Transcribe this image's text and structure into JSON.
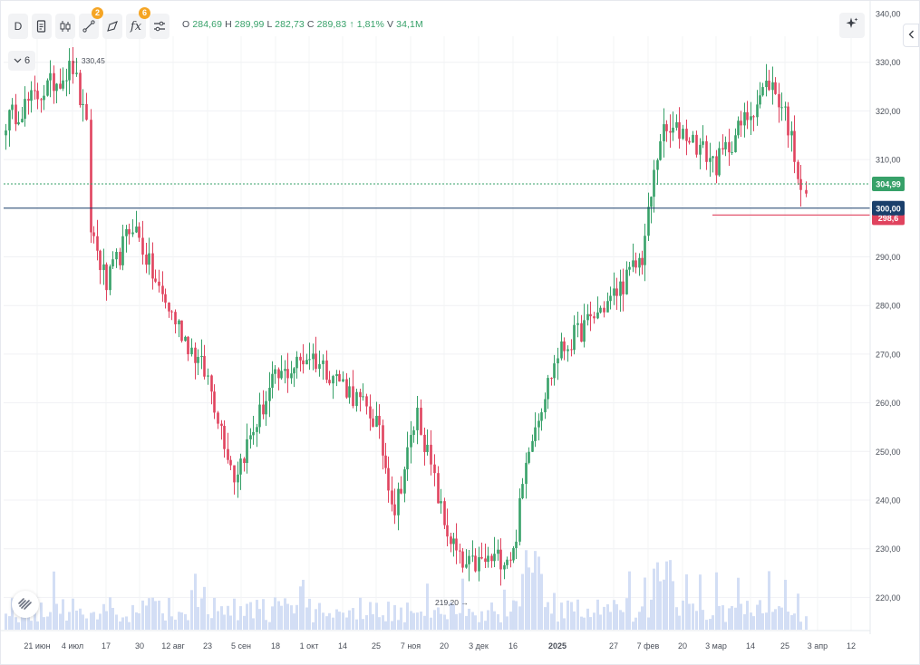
{
  "toolbar": {
    "interval_label": "D",
    "drawings_count": "2",
    "indicators_count": "6",
    "icons": [
      "document-icon",
      "candles-icon",
      "drawing-tool-icon",
      "brush-icon",
      "formula-icon",
      "settings-sliders-icon"
    ]
  },
  "ohlc": {
    "o_key": "O",
    "o_val": "284,69",
    "h_key": "H",
    "h_val": "289,99",
    "l_key": "L",
    "l_val": "282,73",
    "c_key": "C",
    "c_val": "289,83",
    "change": "↑ 1,81%",
    "v_key": "V",
    "v_val": "34,1M"
  },
  "studies_toggle": {
    "label": "6"
  },
  "colors": {
    "up": "#37a169",
    "down": "#e0435e",
    "volume": "#cbd8f3",
    "price_line": "#1a3f6b",
    "badge": "#f5a524"
  },
  "chart_data": {
    "type": "candlestick",
    "y_axis_labels": [
      "340,00",
      "330,00",
      "320,00",
      "310,00",
      "300,00",
      "290,00",
      "280,00",
      "270,00",
      "260,00",
      "250,00",
      "240,00",
      "230,00",
      "220,00"
    ],
    "ylim": [
      214,
      341
    ],
    "x_axis_labels": [
      "21 июн",
      "4 июл",
      "17",
      "30",
      "12 авг",
      "23",
      "5 сен",
      "18",
      "1 окт",
      "14",
      "25",
      "7 ноя",
      "20",
      "3 дек",
      "16",
      "2025",
      "27",
      "7 фев",
      "20",
      "3 мар",
      "14",
      "25",
      "3 апр",
      "12"
    ],
    "max_marker": {
      "label": "330,45",
      "value": 330.45
    },
    "min_marker": {
      "label": "219,20",
      "value": 219.2
    },
    "last_price": {
      "label": "304,99",
      "value": 304.99
    },
    "level_line": {
      "label": "300,00",
      "value": 300.0
    },
    "low_line": {
      "label": "298,6",
      "value": 298.6
    },
    "key_points": [
      {
        "x": "21 июн",
        "y": 318
      },
      {
        "x": "4 июл",
        "y": 329
      },
      {
        "x": "9 июл",
        "y": 316
      },
      {
        "x": "10 июл",
        "y": 296
      },
      {
        "x": "17",
        "y": 284
      },
      {
        "x": "30",
        "y": 297
      },
      {
        "x": "12 авг",
        "y": 283
      },
      {
        "x": "23",
        "y": 265
      },
      {
        "x": "5 сен",
        "y": 245
      },
      {
        "x": "18",
        "y": 264
      },
      {
        "x": "1 окт",
        "y": 270
      },
      {
        "x": "14",
        "y": 264
      },
      {
        "x": "25",
        "y": 256
      },
      {
        "x": "7 ноя",
        "y": 238
      },
      {
        "x": "14 ноя",
        "y": 258
      },
      {
        "x": "20",
        "y": 235
      },
      {
        "x": "3 дек",
        "y": 226
      },
      {
        "x": "16",
        "y": 229
      },
      {
        "x": "19 дек",
        "y": 252
      },
      {
        "x": "2025",
        "y": 270
      },
      {
        "x": "27",
        "y": 282
      },
      {
        "x": "7 фев",
        "y": 290
      },
      {
        "x": "10 фев",
        "y": 315
      },
      {
        "x": "20",
        "y": 316
      },
      {
        "x": "3 мар",
        "y": 309
      },
      {
        "x": "14",
        "y": 323
      },
      {
        "x": "20 мар",
        "y": 326
      },
      {
        "x": "25",
        "y": 320
      },
      {
        "x": "28 мар",
        "y": 305
      },
      {
        "x": "31 мар",
        "y": 300
      }
    ]
  },
  "logo": {
    "name": "logo-icon"
  }
}
